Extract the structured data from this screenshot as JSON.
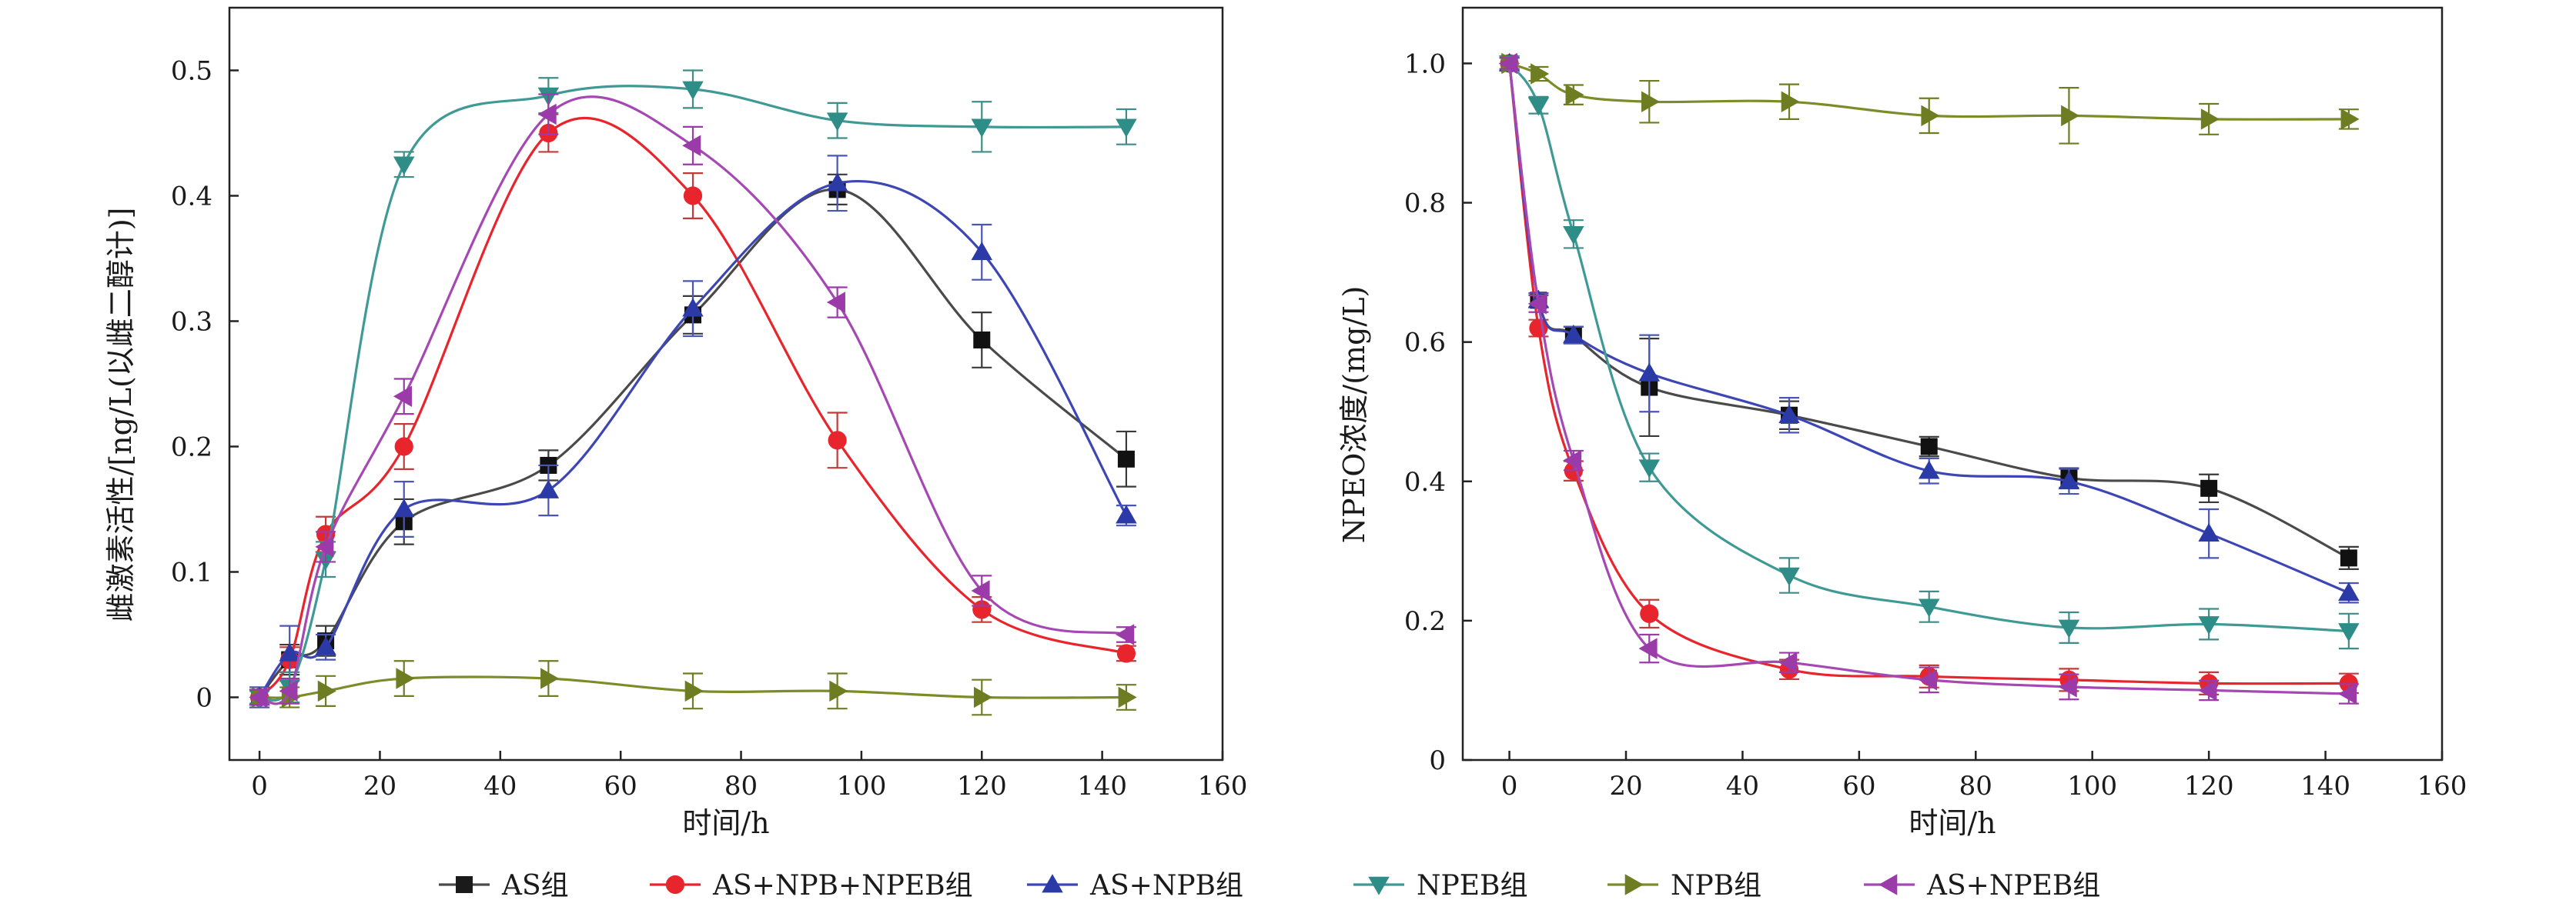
{
  "chart_data": [
    {
      "type": "line",
      "xlabel": "时间/h",
      "ylabel": "雌激素活性/[ng/L(以雌二醇计)]",
      "xlim": [
        -5,
        160
      ],
      "ylim": [
        -0.05,
        0.55
      ],
      "xticks": [
        0,
        20,
        40,
        60,
        80,
        100,
        120,
        140,
        160
      ],
      "yticks": [
        0,
        0.1,
        0.2,
        0.3,
        0.4,
        0.5
      ],
      "ytick_labels": [
        "0",
        "0.1",
        "0.2",
        "0.3",
        "0.4",
        "0.5"
      ],
      "series": [
        {
          "name": "AS组",
          "x": [
            0,
            5,
            11,
            24,
            48,
            72,
            96,
            120,
            144
          ],
          "y": [
            0,
            0.03,
            0.045,
            0.14,
            0.185,
            0.305,
            0.405,
            0.285,
            0.19
          ],
          "err": [
            0.008,
            0.012,
            0.012,
            0.018,
            0.012,
            0.015,
            0.012,
            0.022,
            0.022
          ]
        },
        {
          "name": "AS+NPB+NPEB组",
          "x": [
            0,
            5,
            11,
            24,
            48,
            72,
            96,
            120,
            144
          ],
          "y": [
            0,
            0.03,
            0.13,
            0.2,
            0.45,
            0.4,
            0.205,
            0.07,
            0.035
          ],
          "err": [
            0.006,
            0.01,
            0.014,
            0.018,
            0.015,
            0.018,
            0.022,
            0.01,
            0.006
          ]
        },
        {
          "name": "AS+NPB组",
          "x": [
            0,
            5,
            11,
            24,
            48,
            72,
            96,
            120,
            144
          ],
          "y": [
            0,
            0.035,
            0.04,
            0.15,
            0.165,
            0.31,
            0.41,
            0.355,
            0.145
          ],
          "err": [
            0.008,
            0.022,
            0.01,
            0.022,
            0.02,
            0.022,
            0.022,
            0.022,
            0.008
          ]
        },
        {
          "name": "NPEB组",
          "x": [
            0,
            5,
            11,
            24,
            48,
            72,
            96,
            120,
            144
          ],
          "y": [
            0,
            0.008,
            0.11,
            0.425,
            0.48,
            0.485,
            0.46,
            0.455,
            0.455
          ],
          "err": [
            0.005,
            0.012,
            0.014,
            0.01,
            0.014,
            0.015,
            0.014,
            0.02,
            0.014
          ]
        },
        {
          "name": "NPB组",
          "x": [
            0,
            5,
            11,
            24,
            48,
            72,
            96,
            120,
            144
          ],
          "y": [
            0,
            0,
            0.005,
            0.015,
            0.015,
            0.005,
            0.005,
            0,
            0
          ],
          "err": [
            0.006,
            0.008,
            0.012,
            0.014,
            0.014,
            0.014,
            0.014,
            0.014,
            0.01
          ]
        },
        {
          "name": "AS+NPEB组",
          "x": [
            0,
            5,
            11,
            24,
            48,
            72,
            96,
            120,
            144
          ],
          "y": [
            0,
            0.005,
            0.12,
            0.24,
            0.465,
            0.44,
            0.315,
            0.085,
            0.05
          ],
          "err": [
            0.006,
            0.01,
            0.012,
            0.014,
            0.016,
            0.015,
            0.012,
            0.012,
            0.006
          ]
        }
      ]
    },
    {
      "type": "line",
      "xlabel": "时间/h",
      "ylabel": "NPEO浓度/(mg/L)",
      "xlim": [
        -8,
        160
      ],
      "ylim": [
        0,
        1.08
      ],
      "xticks": [
        0,
        20,
        40,
        60,
        80,
        100,
        120,
        140,
        160
      ],
      "yticks": [
        0,
        0.2,
        0.4,
        0.6,
        0.8,
        1.0
      ],
      "ytick_labels": [
        "0",
        "0.2",
        "0.4",
        "0.6",
        "0.8",
        "1.0"
      ],
      "series": [
        {
          "name": "AS组",
          "x": [
            0,
            5,
            11,
            24,
            48,
            72,
            96,
            120,
            144
          ],
          "y": [
            1.0,
            0.66,
            0.61,
            0.535,
            0.495,
            0.45,
            0.405,
            0.39,
            0.29
          ],
          "err": [
            0.008,
            0.01,
            0.012,
            0.07,
            0.02,
            0.014,
            0.014,
            0.02,
            0.016
          ]
        },
        {
          "name": "AS+NPB+NPEB组",
          "x": [
            0,
            5,
            11,
            24,
            48,
            72,
            96,
            120,
            144
          ],
          "y": [
            1.0,
            0.62,
            0.415,
            0.21,
            0.13,
            0.12,
            0.115,
            0.11,
            0.11
          ],
          "err": [
            0.008,
            0.012,
            0.014,
            0.02,
            0.014,
            0.016,
            0.016,
            0.016,
            0.014
          ]
        },
        {
          "name": "AS+NPB组",
          "x": [
            0,
            5,
            11,
            24,
            48,
            72,
            96,
            120,
            144
          ],
          "y": [
            1.0,
            0.66,
            0.61,
            0.555,
            0.495,
            0.415,
            0.4,
            0.325,
            0.24
          ],
          "err": [
            0.008,
            0.01,
            0.012,
            0.055,
            0.025,
            0.018,
            0.018,
            0.035,
            0.014
          ]
        },
        {
          "name": "NPEB组",
          "x": [
            0,
            5,
            11,
            24,
            48,
            72,
            96,
            120,
            144
          ],
          "y": [
            1.0,
            0.94,
            0.755,
            0.42,
            0.265,
            0.22,
            0.19,
            0.195,
            0.185
          ],
          "err": [
            0.008,
            0.012,
            0.02,
            0.02,
            0.025,
            0.022,
            0.022,
            0.022,
            0.025
          ]
        },
        {
          "name": "NPB组",
          "x": [
            0,
            5,
            11,
            24,
            48,
            72,
            96,
            120,
            144
          ],
          "y": [
            1.0,
            0.985,
            0.955,
            0.945,
            0.945,
            0.925,
            0.925,
            0.92,
            0.92
          ],
          "err": [
            0.008,
            0.01,
            0.014,
            0.03,
            0.025,
            0.025,
            0.04,
            0.022,
            0.014
          ]
        },
        {
          "name": "AS+NPEB组",
          "x": [
            0,
            5,
            11,
            24,
            48,
            72,
            96,
            120,
            144
          ],
          "y": [
            1.0,
            0.655,
            0.43,
            0.16,
            0.14,
            0.115,
            0.105,
            0.1,
            0.095
          ],
          "err": [
            0.008,
            0.012,
            0.014,
            0.02,
            0.014,
            0.018,
            0.018,
            0.014,
            0.014
          ]
        }
      ]
    }
  ],
  "legend": [
    {
      "label": "AS组",
      "color": "#1a1a1a",
      "marker": "square"
    },
    {
      "label": "AS+NPB+NPEB组",
      "color": "#e8242c",
      "marker": "circle"
    },
    {
      "label": "AS+NPB组",
      "color": "#2b3aa6",
      "marker": "triangle-up"
    },
    {
      "label": "NPEB组",
      "color": "#2f8d88",
      "marker": "triangle-down"
    },
    {
      "label": "NPB组",
      "color": "#6f7d22",
      "marker": "triangle-right"
    },
    {
      "label": "AS+NPEB组",
      "color": "#9b3aa9",
      "marker": "triangle-left"
    }
  ],
  "series_colors": {
    "AS组": {
      "line": "#4a4a4a",
      "marker": "#111111",
      "err": "#3a3a3a"
    },
    "AS+NPB+NPEB组": {
      "line": "#e8242c",
      "marker": "#e8242c",
      "err": "#c23a3a"
    },
    "AS+NPB组": {
      "line": "#3c46b4",
      "marker": "#2b3aa6",
      "err": "#4a55b5"
    },
    "NPEB组": {
      "line": "#3f9a95",
      "marker": "#2f8d88",
      "err": "#3f8c88"
    },
    "NPB组": {
      "line": "#7d8c29",
      "marker": "#6f7d22",
      "err": "#6f7d22"
    },
    "AS+NPEB组": {
      "line": "#a548b3",
      "marker": "#9b3aa9",
      "err": "#9b3aa9"
    }
  }
}
